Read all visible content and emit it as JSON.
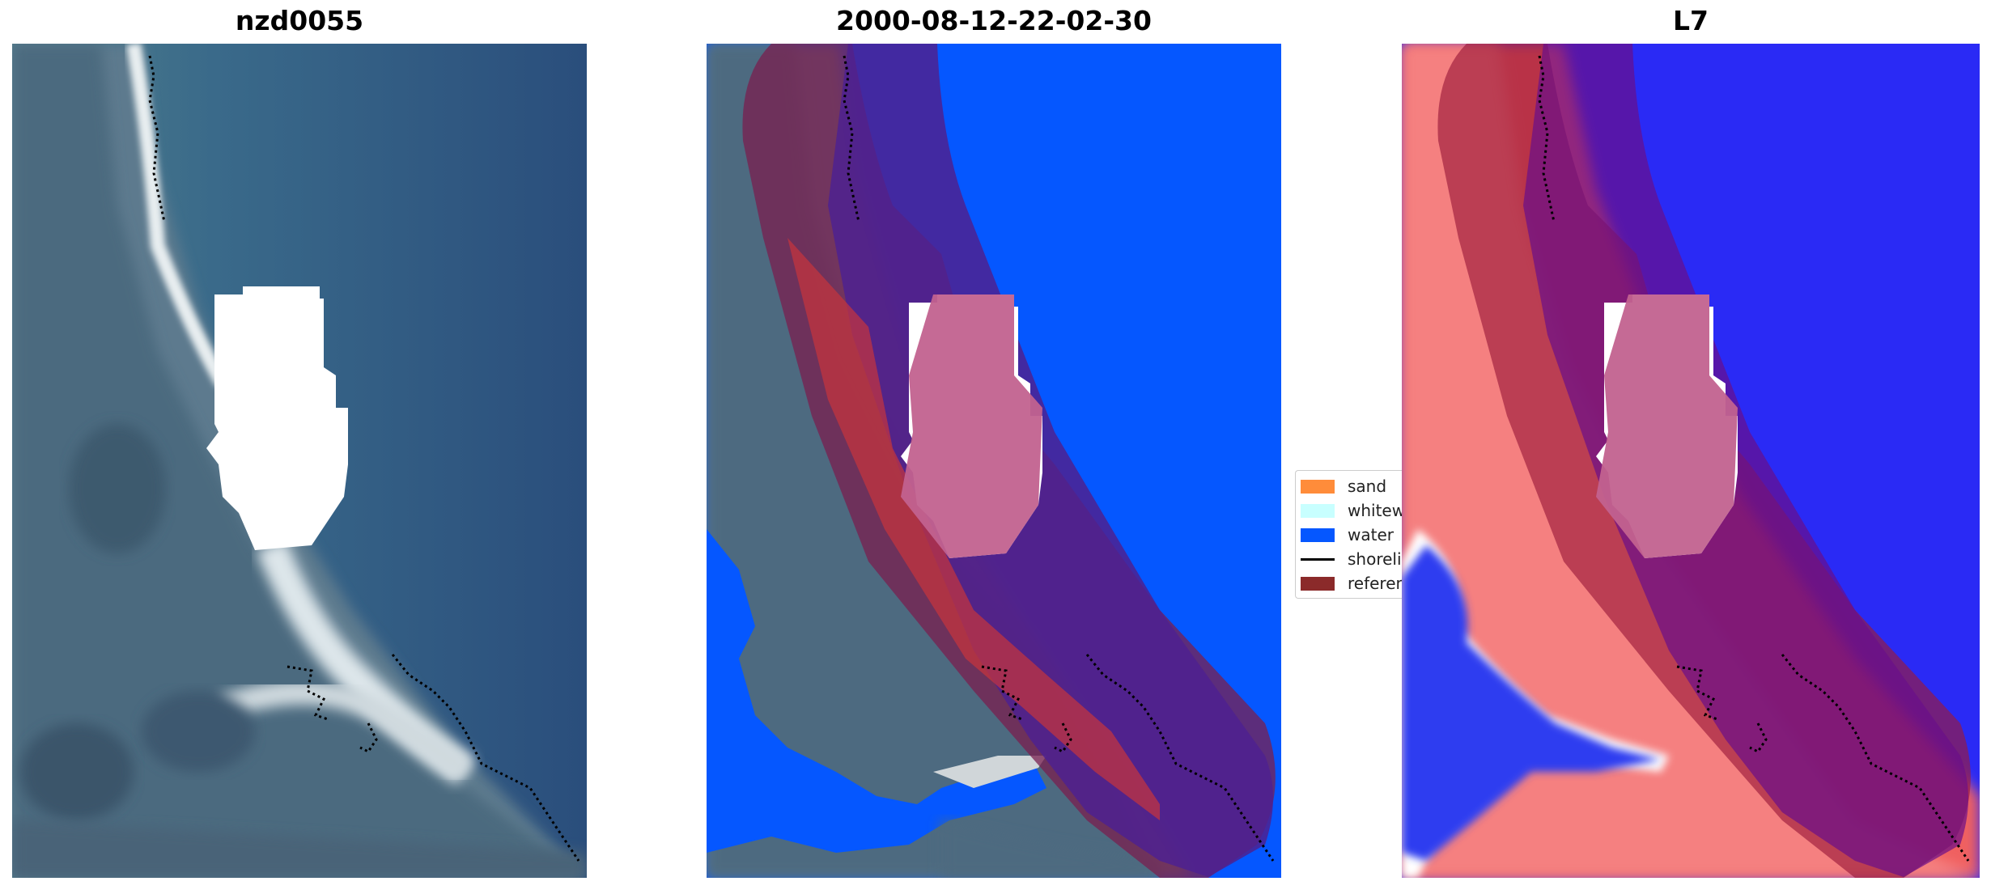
{
  "titles": {
    "left": "nzd0055",
    "middle": "2000-08-12-22-02-30",
    "right": "L7"
  },
  "legend": {
    "items": [
      {
        "label": "sand",
        "color": "#ff8c3a"
      },
      {
        "label": "whitewater",
        "color": "#c8ffff"
      },
      {
        "label": "water",
        "color": "#0557ff"
      },
      {
        "label": "shoreline",
        "color": "#000000"
      },
      {
        "label": "reference shoreline buffer",
        "color": "#8b2a2a"
      }
    ]
  }
}
